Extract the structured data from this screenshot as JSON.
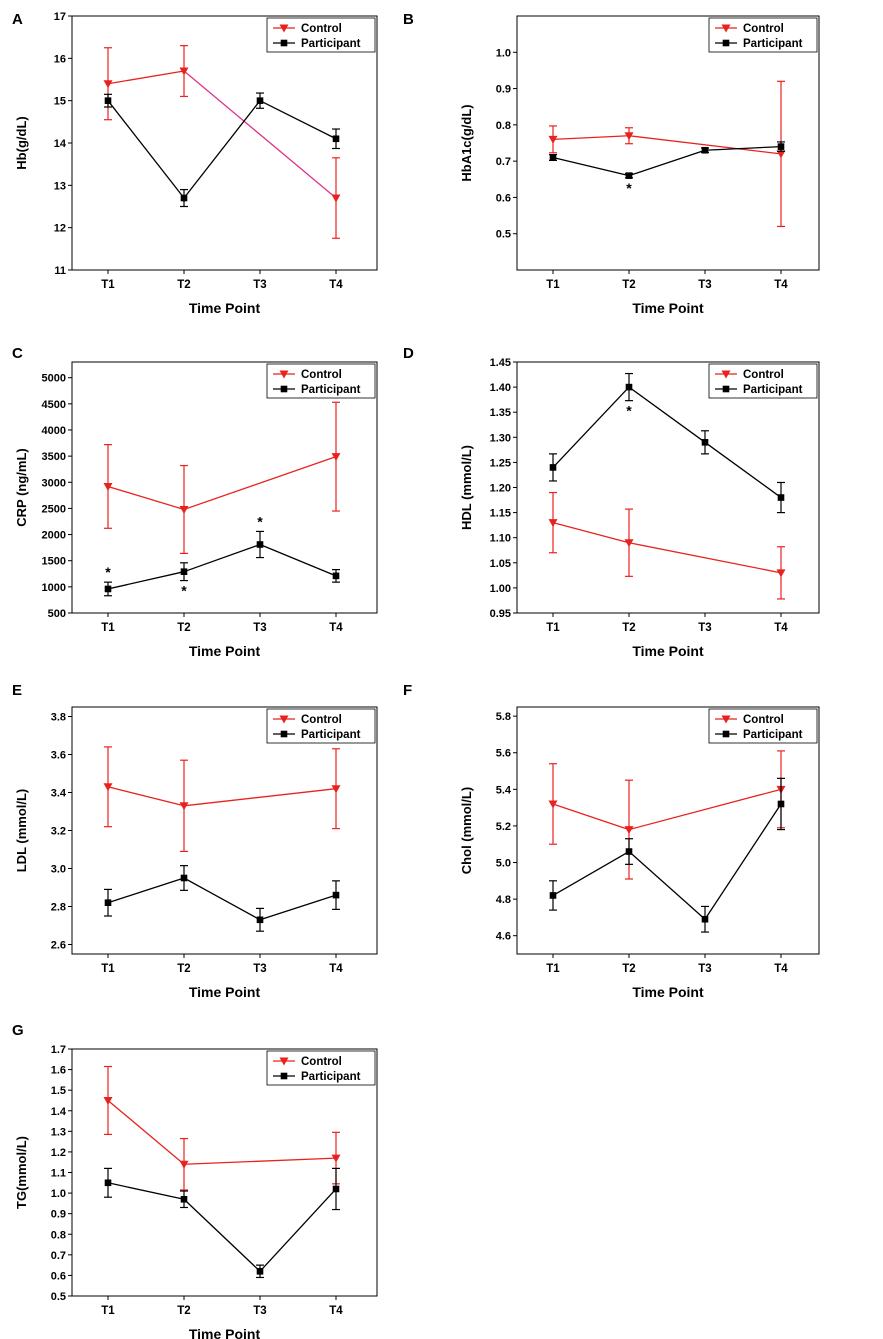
{
  "colors": {
    "control": "#e8231f",
    "participant": "#000000",
    "control_alt_segment": "#e0338a",
    "axis": "#000000"
  },
  "legend": {
    "control": "Control",
    "participant": "Participant"
  },
  "chart_data": [
    {
      "panel": "A",
      "type": "line",
      "xlabel": "Time Point",
      "ylabel": "Hb(g/dL)",
      "categories": [
        "T1",
        "T2",
        "T3",
        "T4"
      ],
      "ylim": [
        11,
        17
      ],
      "yticks": [
        11,
        12,
        13,
        14,
        15,
        16,
        17
      ],
      "tick_decimals": 0,
      "legend_position": "top-right",
      "series": [
        {
          "name": "Control",
          "values": [
            15.4,
            15.7,
            null,
            12.7
          ],
          "errors": [
            0.85,
            0.6,
            null,
            0.95
          ]
        },
        {
          "name": "Participant",
          "values": [
            15.0,
            12.7,
            15.0,
            14.1
          ],
          "errors": [
            0.15,
            0.2,
            0.18,
            0.23
          ]
        }
      ],
      "annotations": []
    },
    {
      "panel": "B",
      "type": "line",
      "xlabel": "Time Point",
      "ylabel": "HbA1c(g/dL)",
      "categories": [
        "T1",
        "T2",
        "T3",
        "T4"
      ],
      "ylim": [
        0.4,
        1.1
      ],
      "yticks": [
        0.5,
        0.6,
        0.7,
        0.8,
        0.9,
        1.0
      ],
      "tick_decimals": 1,
      "legend_position": "top-right",
      "series": [
        {
          "name": "Control",
          "values": [
            0.76,
            0.77,
            null,
            0.72
          ],
          "errors": [
            0.037,
            0.022,
            null,
            0.2
          ]
        },
        {
          "name": "Participant",
          "values": [
            0.71,
            0.66,
            0.73,
            0.74
          ],
          "errors": [
            0.008,
            0.006,
            0.006,
            0.013
          ]
        }
      ],
      "annotations": [
        {
          "series": "Participant",
          "index": 1,
          "text": "*",
          "where": "below"
        }
      ]
    },
    {
      "panel": "C",
      "type": "line",
      "xlabel": "Time Point",
      "ylabel": "CRP (ng/mL)",
      "categories": [
        "T1",
        "T2",
        "T3",
        "T4"
      ],
      "ylim": [
        500,
        5300
      ],
      "yticks": [
        500,
        1000,
        1500,
        2000,
        2500,
        3000,
        3500,
        4000,
        4500,
        5000
      ],
      "tick_decimals": 0,
      "legend_position": "top-right",
      "series": [
        {
          "name": "Control",
          "values": [
            2920,
            2480,
            null,
            3490
          ],
          "errors": [
            800,
            840,
            null,
            1040
          ]
        },
        {
          "name": "Participant",
          "values": [
            960,
            1290,
            1810,
            1210
          ],
          "errors": [
            130,
            170,
            250,
            120
          ]
        }
      ],
      "annotations": [
        {
          "series": "Participant",
          "index": 0,
          "text": "*",
          "where": "above"
        },
        {
          "series": "Participant",
          "index": 1,
          "text": "*",
          "where": "below"
        },
        {
          "series": "Participant",
          "index": 2,
          "text": "*",
          "where": "above"
        }
      ]
    },
    {
      "panel": "D",
      "type": "line",
      "xlabel": "Time Point",
      "ylabel": "HDL (mmol/L)",
      "categories": [
        "T1",
        "T2",
        "T3",
        "T4"
      ],
      "ylim": [
        0.95,
        1.45
      ],
      "yticks": [
        0.95,
        1.0,
        1.05,
        1.1,
        1.15,
        1.2,
        1.25,
        1.3,
        1.35,
        1.4,
        1.45
      ],
      "tick_decimals": 2,
      "legend_position": "top-right",
      "series": [
        {
          "name": "Control",
          "values": [
            1.13,
            1.09,
            null,
            1.03
          ],
          "errors": [
            0.06,
            0.067,
            null,
            0.052
          ]
        },
        {
          "name": "Participant",
          "values": [
            1.24,
            1.4,
            1.29,
            1.18
          ],
          "errors": [
            0.027,
            0.027,
            0.023,
            0.03
          ]
        }
      ],
      "annotations": [
        {
          "series": "Participant",
          "index": 1,
          "text": "*",
          "where": "below"
        }
      ]
    },
    {
      "panel": "E",
      "type": "line",
      "xlabel": "Time Point",
      "ylabel": "LDL (mmol/L)",
      "categories": [
        "T1",
        "T2",
        "T3",
        "T4"
      ],
      "ylim": [
        2.55,
        3.85
      ],
      "yticks": [
        2.6,
        2.8,
        3.0,
        3.2,
        3.4,
        3.6,
        3.8
      ],
      "tick_decimals": 1,
      "legend_position": "top-right",
      "series": [
        {
          "name": "Control",
          "values": [
            3.43,
            3.33,
            null,
            3.42
          ],
          "errors": [
            0.21,
            0.24,
            null,
            0.21
          ]
        },
        {
          "name": "Participant",
          "values": [
            2.82,
            2.95,
            2.73,
            2.86
          ],
          "errors": [
            0.07,
            0.065,
            0.06,
            0.075
          ]
        }
      ],
      "annotations": []
    },
    {
      "panel": "F",
      "type": "line",
      "xlabel": "Time Point",
      "ylabel": "Chol (mmol/L)",
      "categories": [
        "T1",
        "T2",
        "T3",
        "T4"
      ],
      "ylim": [
        4.5,
        5.85
      ],
      "yticks": [
        4.6,
        4.8,
        5.0,
        5.2,
        5.4,
        5.6,
        5.8
      ],
      "tick_decimals": 1,
      "legend_position": "top-right",
      "series": [
        {
          "name": "Control",
          "values": [
            5.32,
            5.18,
            null,
            5.4
          ],
          "errors": [
            0.22,
            0.27,
            null,
            0.21
          ]
        },
        {
          "name": "Participant",
          "values": [
            4.82,
            5.06,
            4.69,
            5.32
          ],
          "errors": [
            0.08,
            0.07,
            0.07,
            0.14
          ]
        }
      ],
      "annotations": []
    },
    {
      "panel": "G",
      "type": "line",
      "xlabel": "Time Point",
      "ylabel": "TG(mmol/L)",
      "categories": [
        "T1",
        "T2",
        "T3",
        "T4"
      ],
      "ylim": [
        0.5,
        1.7
      ],
      "yticks": [
        0.5,
        0.6,
        0.7,
        0.8,
        0.9,
        1.0,
        1.1,
        1.2,
        1.3,
        1.4,
        1.5,
        1.6,
        1.7
      ],
      "tick_decimals": 1,
      "legend_position": "top-right",
      "series": [
        {
          "name": "Control",
          "values": [
            1.45,
            1.14,
            null,
            1.17
          ],
          "errors": [
            0.165,
            0.125,
            null,
            0.125
          ]
        },
        {
          "name": "Participant",
          "values": [
            1.05,
            0.97,
            0.62,
            1.02
          ],
          "errors": [
            0.07,
            0.04,
            0.03,
            0.1
          ]
        }
      ],
      "annotations": []
    }
  ]
}
